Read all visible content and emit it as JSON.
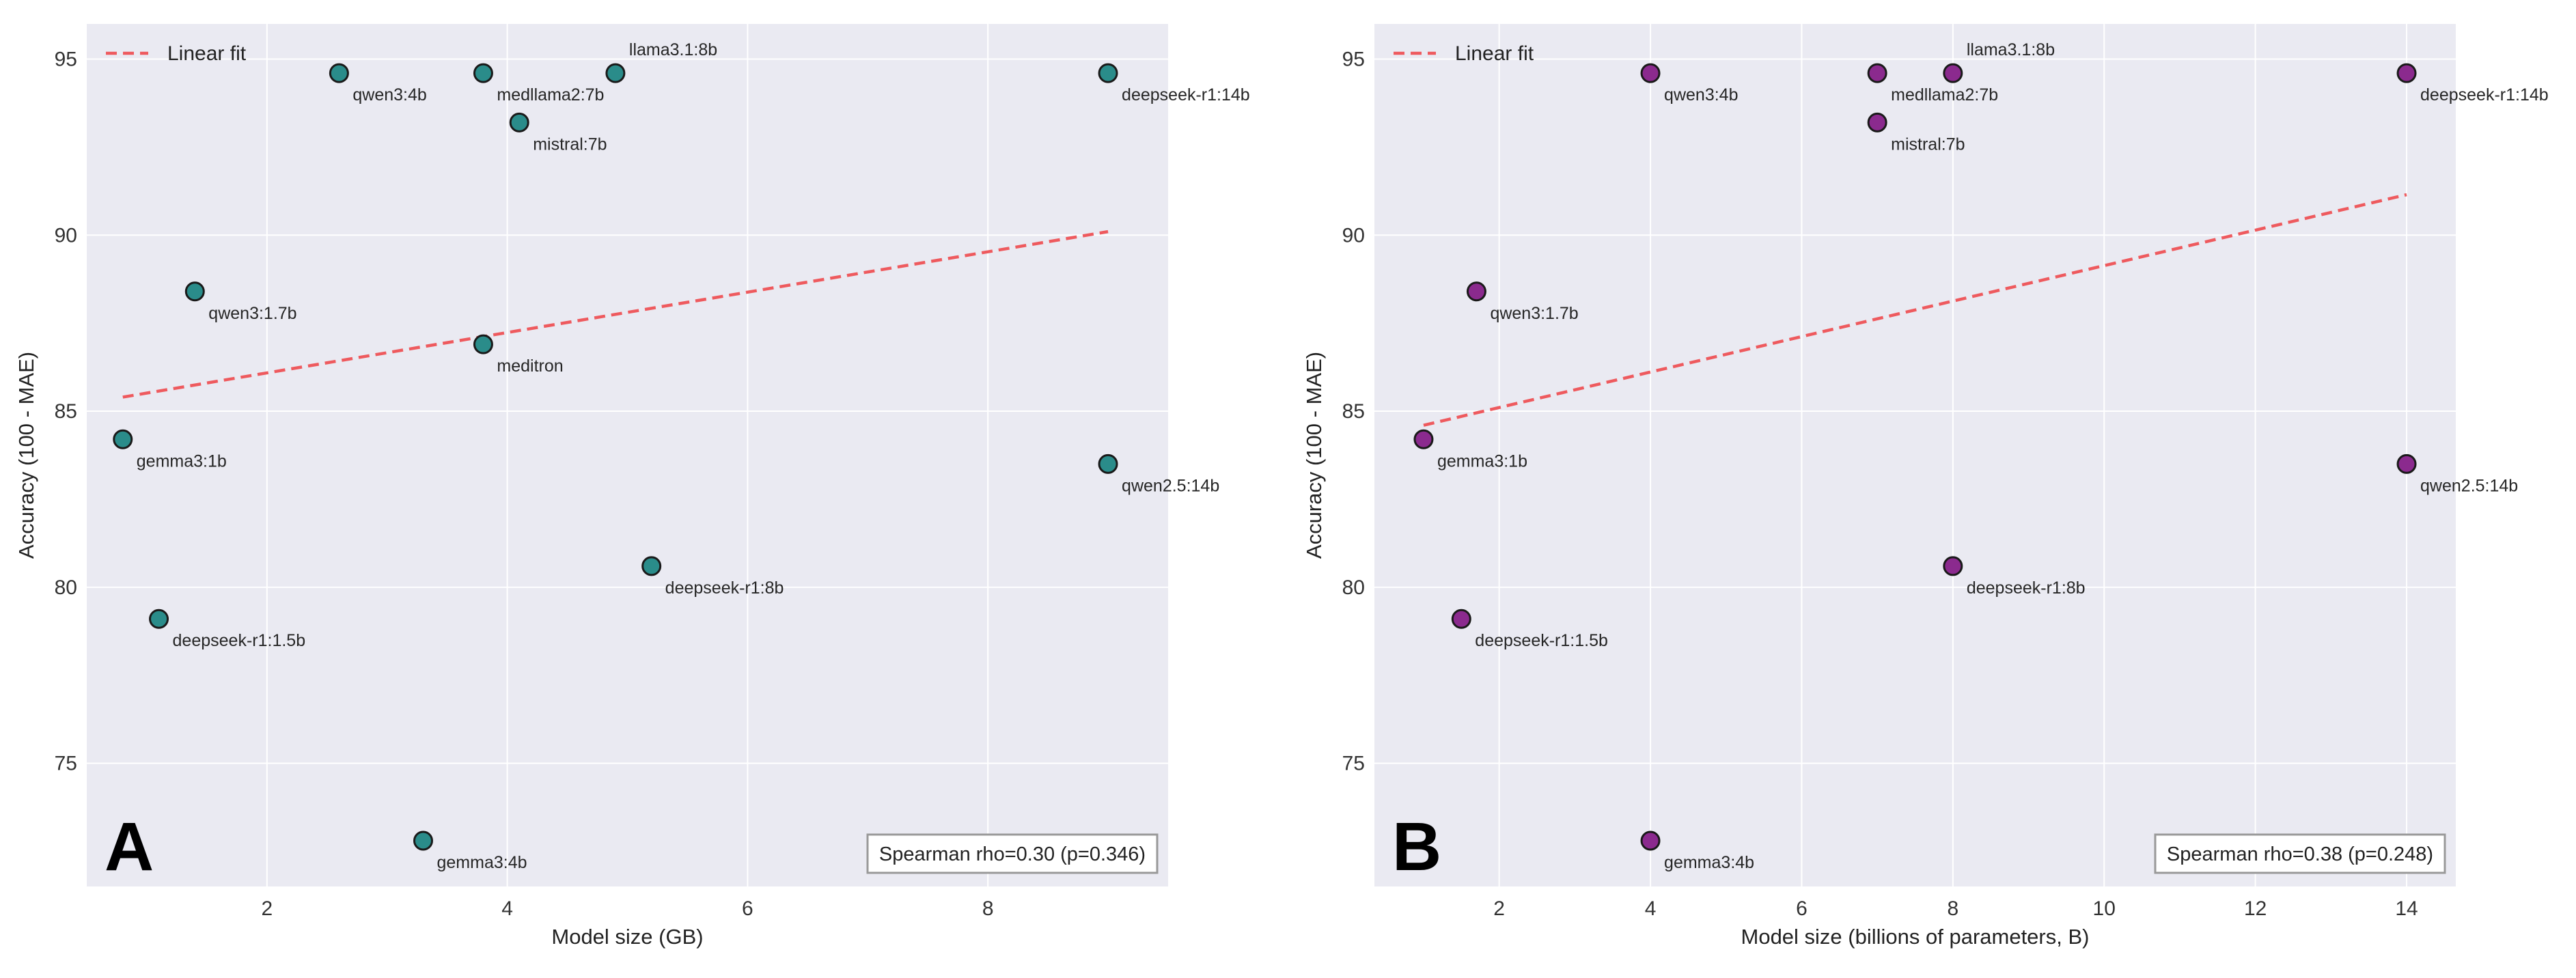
{
  "figure": {
    "panels": [
      "A",
      "B"
    ],
    "legend_label": "Linear fit"
  },
  "chart_data": [
    {
      "type": "scatter",
      "panel_label": "A",
      "xlabel": "Model size (GB)",
      "ylabel": "Accuracy (100 - MAE)",
      "xlim": [
        0.5,
        9.5
      ],
      "ylim": [
        71.5,
        96.0
      ],
      "xticks": [
        2,
        4,
        6,
        8
      ],
      "yticks": [
        75,
        80,
        85,
        90,
        95
      ],
      "grid": true,
      "legend_placement": "top-left",
      "marker_color": "#2a8c8a",
      "fit_color": "#ee5a5e",
      "points": [
        {
          "label": "gemma3:1b",
          "x": 0.8,
          "y": 84.2
        },
        {
          "label": "deepseek-r1:1.5b",
          "x": 1.1,
          "y": 79.1
        },
        {
          "label": "qwen3:1.7b",
          "x": 1.4,
          "y": 88.4
        },
        {
          "label": "qwen3:4b",
          "x": 2.6,
          "y": 94.6
        },
        {
          "label": "gemma3:4b",
          "x": 3.3,
          "y": 72.8
        },
        {
          "label": "medllama2:7b",
          "x": 3.8,
          "y": 94.6
        },
        {
          "label": "meditron",
          "x": 3.8,
          "y": 86.9
        },
        {
          "label": "mistral:7b",
          "x": 4.1,
          "y": 93.2
        },
        {
          "label": "llama3.1:8b",
          "x": 4.9,
          "y": 94.6
        },
        {
          "label": "deepseek-r1:8b",
          "x": 5.2,
          "y": 80.6
        },
        {
          "label": "deepseek-r1:14b",
          "x": 9.0,
          "y": 94.6
        },
        {
          "label": "qwen2.5:14b",
          "x": 9.0,
          "y": 83.5
        }
      ],
      "fit_line": {
        "x": [
          0.8,
          9.0
        ],
        "y": [
          85.4,
          90.1
        ]
      },
      "annotation": "Spearman rho=0.30 (p=0.346)"
    },
    {
      "type": "scatter",
      "panel_label": "B",
      "xlabel": "Model size (billions of parameters, B)",
      "ylabel": "Accuracy (100 - MAE)",
      "xlim": [
        0.35,
        14.65
      ],
      "ylim": [
        71.5,
        96.0
      ],
      "xticks": [
        2,
        4,
        6,
        8,
        10,
        12,
        14
      ],
      "yticks": [
        75,
        80,
        85,
        90,
        95
      ],
      "grid": true,
      "legend_placement": "top-left",
      "marker_color": "#8b2a8e",
      "fit_color": "#ee5a5e",
      "points": [
        {
          "label": "gemma3:1b",
          "x": 1.0,
          "y": 84.2
        },
        {
          "label": "deepseek-r1:1.5b",
          "x": 1.5,
          "y": 79.1
        },
        {
          "label": "qwen3:1.7b",
          "x": 1.7,
          "y": 88.4
        },
        {
          "label": "qwen3:4b",
          "x": 4.0,
          "y": 94.6
        },
        {
          "label": "gemma3:4b",
          "x": 4.0,
          "y": 72.8
        },
        {
          "label": "medllama2:7b",
          "x": 7.0,
          "y": 94.6
        },
        {
          "label": "mistral:7b",
          "x": 7.0,
          "y": 93.2
        },
        {
          "label": "llama3.1:8b",
          "x": 8.0,
          "y": 94.6
        },
        {
          "label": "deepseek-r1:8b",
          "x": 8.0,
          "y": 80.6
        },
        {
          "label": "deepseek-r1:14b",
          "x": 14.0,
          "y": 94.6
        },
        {
          "label": "qwen2.5:14b",
          "x": 14.0,
          "y": 83.5
        }
      ],
      "fit_line": {
        "x": [
          1.0,
          14.0
        ],
        "y": [
          84.6,
          91.15
        ]
      },
      "annotation": "Spearman rho=0.38 (p=0.248)"
    }
  ]
}
